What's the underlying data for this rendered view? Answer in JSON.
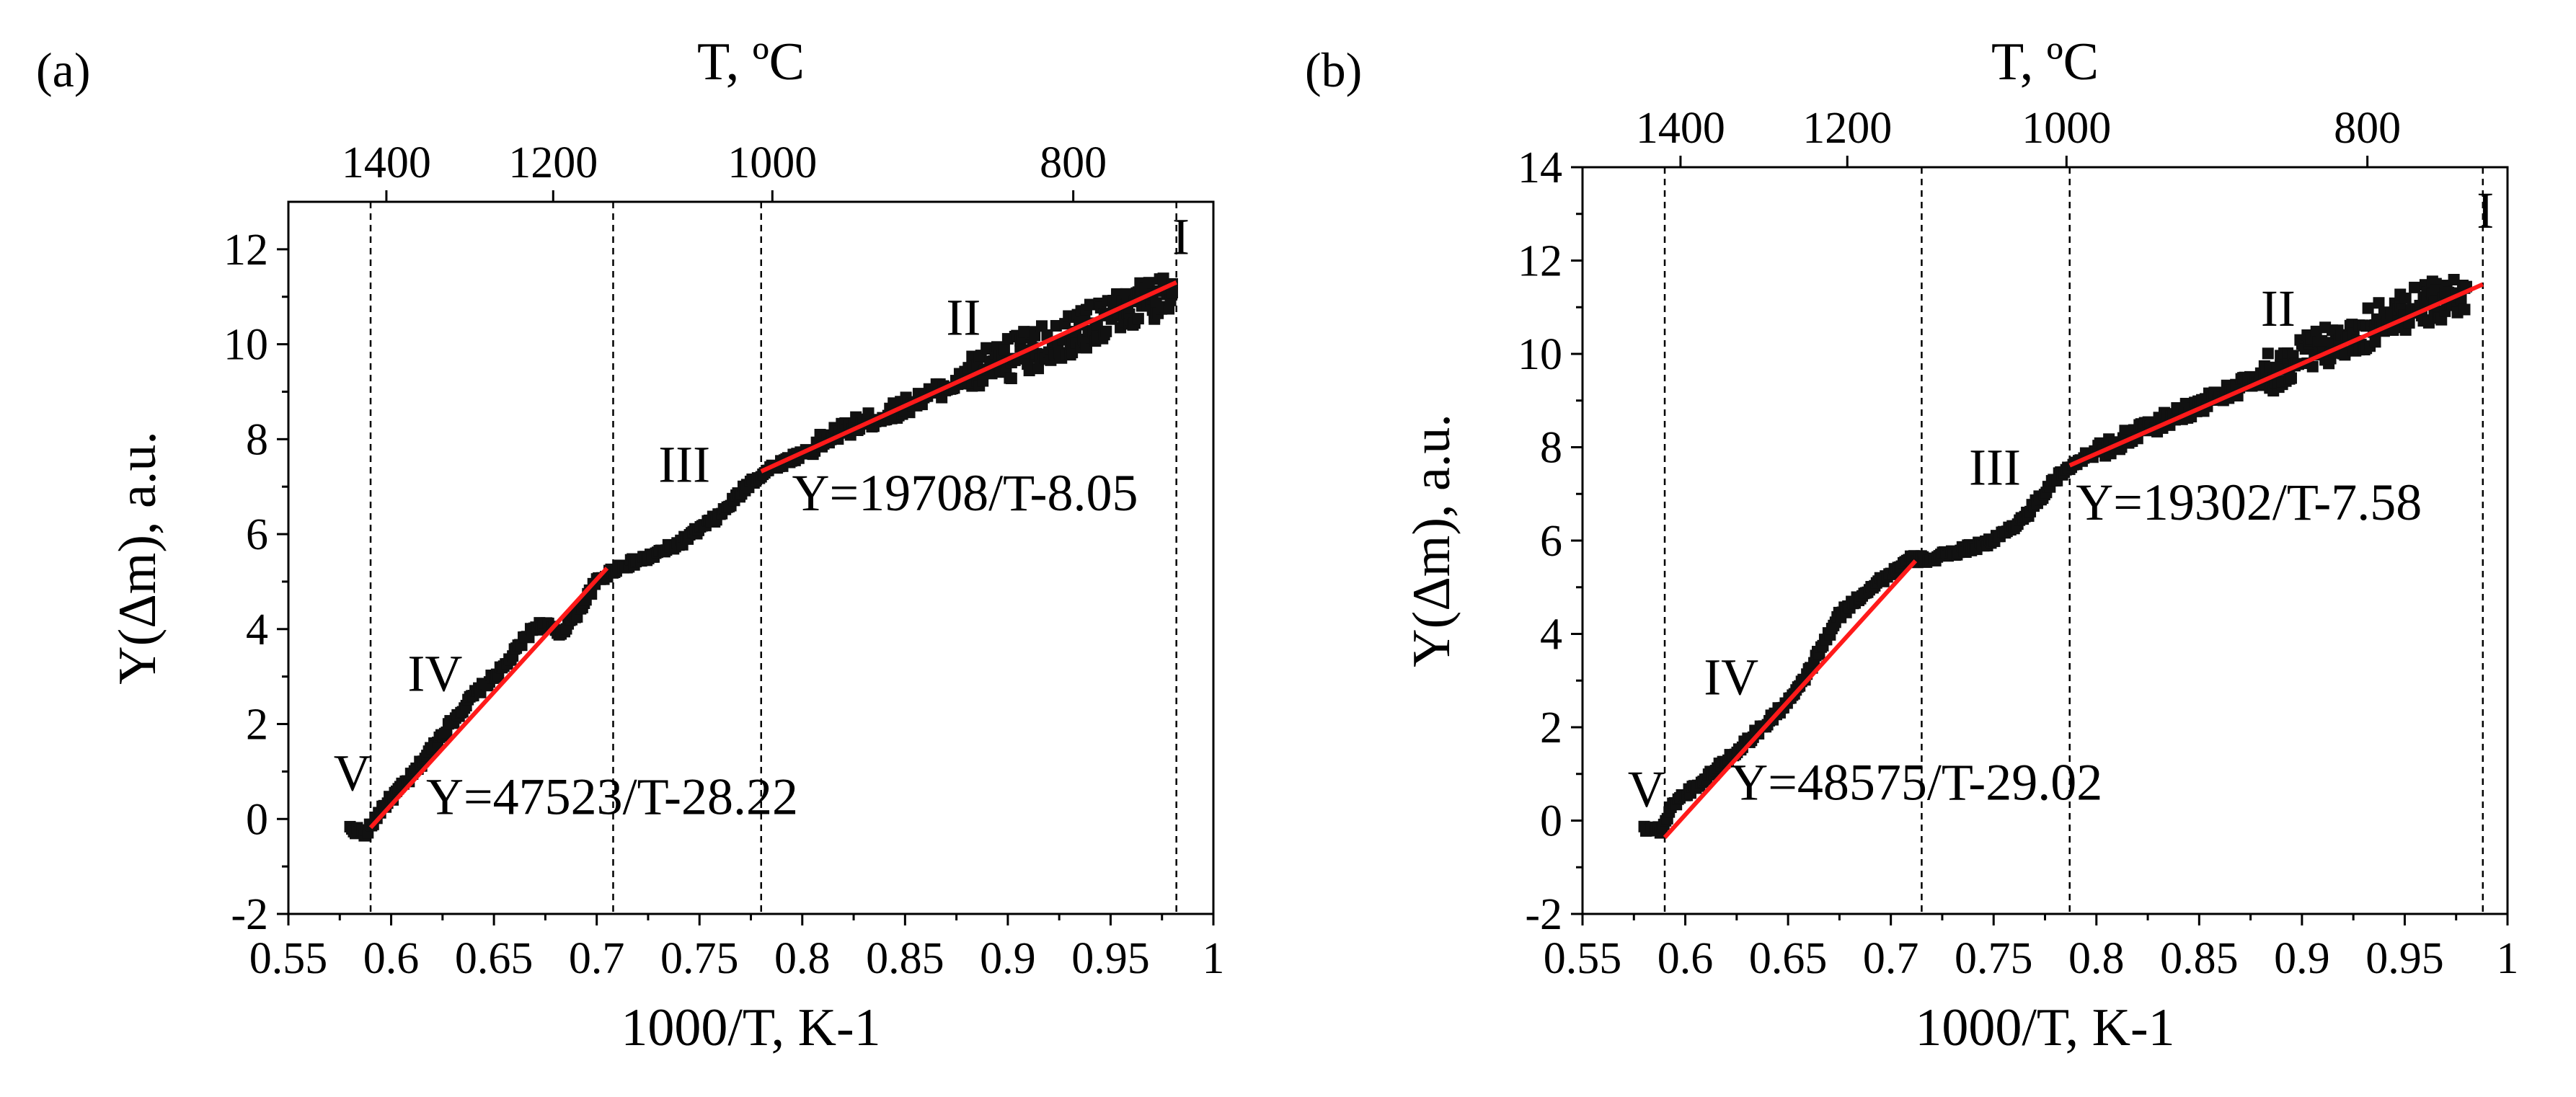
{
  "chart_data": [
    {
      "type": "scatter",
      "panel_label": "(a)",
      "xlabel": "1000/T, K-1",
      "ylabel": "Y(Δm), a.u.",
      "top_xlabel": "T, ºC",
      "xlim": [
        0.55,
        1.0
      ],
      "ylim": [
        -2,
        13
      ],
      "xticks": [
        0.55,
        0.6,
        0.65,
        0.7,
        0.75,
        0.8,
        0.85,
        0.9,
        0.95,
        1
      ],
      "xtick_labels": [
        "0.55",
        "0.6",
        "0.65",
        "0.7",
        "0.75",
        "0.8",
        "0.85",
        "0.9",
        "0.95",
        "1"
      ],
      "yticks": [
        -2,
        0,
        2,
        4,
        6,
        8,
        10,
        12
      ],
      "ytick_labels": [
        "-2",
        "0",
        "2",
        "4",
        "6",
        "8",
        "10",
        "12"
      ],
      "top_ticks_celsius": [
        1400,
        1200,
        1000,
        800
      ],
      "top_tick_labels": [
        "1400",
        "1200",
        "1000",
        "800"
      ],
      "region_boundaries_x": [
        0.59,
        0.708,
        0.78,
        0.982
      ],
      "region_labels": [
        {
          "text": "V",
          "x": 0.572,
          "y": 0.6
        },
        {
          "text": "IV",
          "x": 0.608,
          "y": 2.7
        },
        {
          "text": "III",
          "x": 0.73,
          "y": 7.1
        },
        {
          "text": "II",
          "x": 0.87,
          "y": 10.2
        },
        {
          "text": "I",
          "x": 0.98,
          "y": 11.9
        }
      ],
      "trace": {
        "x": [
          0.58,
          0.588,
          0.595,
          0.61,
          0.625,
          0.64,
          0.655,
          0.665,
          0.67,
          0.675,
          0.682,
          0.69,
          0.7,
          0.71,
          0.725,
          0.74,
          0.76,
          0.775,
          0.785,
          0.8,
          0.82,
          0.84,
          0.86,
          0.88,
          0.9,
          0.92,
          0.94,
          0.96,
          0.98
        ],
        "y": [
          -0.2,
          -0.3,
          0.2,
          0.9,
          1.8,
          2.6,
          3.2,
          3.8,
          4.05,
          4.1,
          3.9,
          4.3,
          5.0,
          5.3,
          5.5,
          5.8,
          6.4,
          7.1,
          7.4,
          7.7,
          8.2,
          8.5,
          8.9,
          9.3,
          9.7,
          10.0,
          10.4,
          10.8,
          11.1
        ]
      },
      "fits": [
        {
          "label": "Y=47523/T-28.22",
          "x": [
            0.59,
            0.705
          ],
          "label_x": 0.617,
          "label_y": 0.1
        },
        {
          "label": "Y=19708/T-8.05",
          "x": [
            0.78,
            0.982
          ],
          "label_x": 0.795,
          "label_y": 6.5
        }
      ]
    },
    {
      "type": "scatter",
      "panel_label": "(b)",
      "xlabel": "1000/T, K-1",
      "ylabel": "Y(Δm), a.u.",
      "top_xlabel": "T, ºC",
      "xlim": [
        0.55,
        1.0
      ],
      "ylim": [
        -2,
        14
      ],
      "xticks": [
        0.55,
        0.6,
        0.65,
        0.7,
        0.75,
        0.8,
        0.85,
        0.9,
        0.95,
        1
      ],
      "xtick_labels": [
        "0.55",
        "0.6",
        "0.65",
        "0.7",
        "0.75",
        "0.8",
        "0.85",
        "0.9",
        "0.95",
        "1"
      ],
      "yticks": [
        -2,
        0,
        2,
        4,
        6,
        8,
        10,
        12,
        14
      ],
      "ytick_labels": [
        "-2",
        "0",
        "2",
        "4",
        "6",
        "8",
        "10",
        "12",
        "14"
      ],
      "top_ticks_celsius": [
        1400,
        1200,
        1000,
        800
      ],
      "top_tick_labels": [
        "1400",
        "1200",
        "1000",
        "800"
      ],
      "region_boundaries_x": [
        0.59,
        0.715,
        0.787,
        0.988
      ],
      "region_labels": [
        {
          "text": "V",
          "x": 0.572,
          "y": 0.3
        },
        {
          "text": "IV",
          "x": 0.609,
          "y": 2.7
        },
        {
          "text": "III",
          "x": 0.738,
          "y": 7.2
        },
        {
          "text": "II",
          "x": 0.88,
          "y": 10.6
        },
        {
          "text": "I",
          "x": 0.985,
          "y": 12.7
        }
      ],
      "trace": {
        "x": [
          0.58,
          0.588,
          0.595,
          0.61,
          0.625,
          0.64,
          0.655,
          0.665,
          0.675,
          0.69,
          0.7,
          0.71,
          0.72,
          0.735,
          0.75,
          0.765,
          0.78,
          0.79,
          0.8,
          0.82,
          0.84,
          0.86,
          0.88,
          0.9,
          0.92,
          0.94,
          0.96,
          0.98
        ],
        "y": [
          -0.15,
          -0.2,
          0.4,
          0.9,
          1.5,
          2.1,
          2.8,
          3.6,
          4.4,
          5.0,
          5.3,
          5.6,
          5.6,
          5.8,
          6.0,
          6.5,
          7.3,
          7.7,
          7.9,
          8.3,
          8.7,
          9.1,
          9.5,
          9.9,
          10.3,
          10.7,
          11.1,
          11.3
        ]
      },
      "fits": [
        {
          "label": "Y=48575/T-29.02",
          "x": [
            0.59,
            0.712
          ],
          "label_x": 0.622,
          "label_y": 0.45
        },
        {
          "label": "Y=19302/T-7.58",
          "x": [
            0.787,
            0.988
          ],
          "label_x": 0.79,
          "label_y": 6.45
        }
      ]
    }
  ]
}
